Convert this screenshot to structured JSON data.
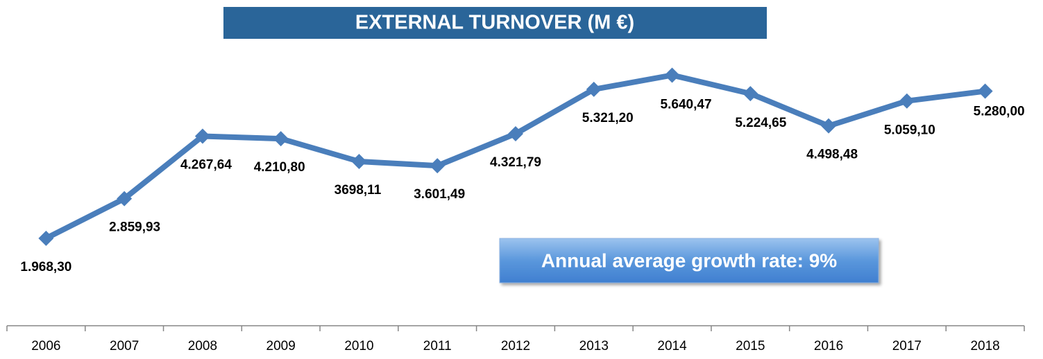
{
  "chart_data": {
    "type": "line",
    "title": "EXTERNAL TURNOVER (M €)",
    "annotation": "Annual average growth rate: 9%",
    "categories": [
      "2006",
      "2007",
      "2008",
      "2009",
      "2010",
      "2011",
      "2012",
      "2013",
      "2014",
      "2015",
      "2016",
      "2017",
      "2018"
    ],
    "series": [
      {
        "name": "External turnover",
        "color": "#4a7ebb",
        "values": [
          1968.3,
          2859.93,
          4267.64,
          4210.8,
          3698.11,
          3601.49,
          4321.79,
          5321.2,
          5640.47,
          5224.65,
          4498.48,
          5059.1,
          5280.0
        ],
        "value_labels": [
          "1.968,30",
          "2.859,93",
          "4.267,64",
          "4.210,80",
          "3698,11",
          "3.601,49",
          "4.321,79",
          "5.321,20",
          "5.640,47",
          "5.224,65",
          "4.498,48",
          "5.059,10",
          "5.280,00"
        ]
      }
    ]
  }
}
